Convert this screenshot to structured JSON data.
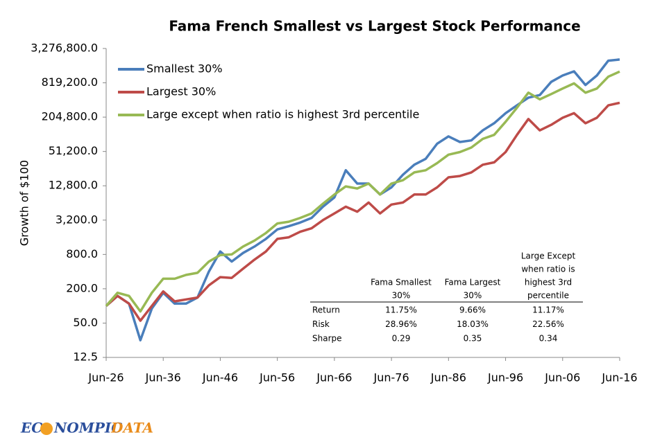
{
  "chart_data": {
    "type": "line",
    "title": "Fama French Smallest vs Largest Stock Performance",
    "y_label": "Growth of $100",
    "log_scale": true,
    "categories": [
      "Jun-26",
      null,
      null,
      null,
      null,
      "Jun-36",
      null,
      null,
      null,
      null,
      "Jun-46",
      null,
      null,
      null,
      null,
      "Jun-56",
      null,
      null,
      null,
      null,
      "Jun-66",
      null,
      null,
      null,
      null,
      "Jun-76",
      null,
      null,
      null,
      null,
      "Jun-86",
      null,
      null,
      null,
      null,
      "Jun-96",
      null,
      null,
      null,
      null,
      "Jun-06",
      null,
      null,
      null,
      null,
      "Jun-16"
    ],
    "series": [
      {
        "name": "Smallest 30%",
        "color": "#4a7ebb",
        "values": [
          100,
          150,
          110,
          25,
          90,
          170,
          110,
          110,
          140,
          400,
          900,
          600,
          850,
          1100,
          1500,
          2200,
          2500,
          2900,
          3500,
          5500,
          8000,
          24000,
          14000,
          14000,
          9000,
          12000,
          20000,
          30000,
          38000,
          70000,
          94000,
          75000,
          80000,
          120000,
          160000,
          240000,
          330000,
          450000,
          500000,
          850000,
          1100000,
          1300000,
          750000,
          1100000,
          2000000,
          2100000
        ]
      },
      {
        "name": "Largest 30%",
        "color": "#be4b48",
        "values": [
          100,
          150,
          110,
          55,
          100,
          180,
          120,
          130,
          140,
          230,
          320,
          310,
          450,
          650,
          900,
          1500,
          1600,
          2000,
          2300,
          3200,
          4200,
          5500,
          4500,
          6500,
          4200,
          6000,
          6500,
          9000,
          9000,
          12000,
          18000,
          19000,
          22000,
          30000,
          33000,
          50000,
          100000,
          190000,
          120000,
          150000,
          200000,
          240000,
          160000,
          200000,
          330000,
          366000
        ]
      },
      {
        "name": "Large except when ratio is highest 3rd percentile",
        "color": "#98b954",
        "values": [
          100,
          170,
          150,
          80,
          170,
          300,
          300,
          350,
          380,
          600,
          780,
          800,
          1100,
          1400,
          1900,
          2800,
          3000,
          3500,
          4200,
          6200,
          9000,
          12500,
          11500,
          14000,
          9000,
          14000,
          16000,
          22000,
          24000,
          32000,
          45000,
          50000,
          60000,
          85000,
          100000,
          170000,
          300000,
          550000,
          420000,
          520000,
          650000,
          800000,
          550000,
          650000,
          1050000,
          1290000
        ]
      }
    ],
    "ylim": [
      12.5,
      3276800
    ],
    "yticks": [
      12.5,
      {
        "value": 50,
        "label": "50.0"
      },
      {
        "value": 200,
        "label": "200.0"
      },
      {
        "value": 800,
        "label": "800.0"
      },
      {
        "value": 3200,
        "label": "3,200.0"
      },
      {
        "value": 12800,
        "label": "12,800.0"
      },
      {
        "value": 51200,
        "label": "51,200.0"
      },
      {
        "value": 204800,
        "label": "204,800.0"
      },
      {
        "value": 819200,
        "label": "819,200.0"
      },
      {
        "value": 3276800,
        "label": "3,276,800.0"
      }
    ],
    "legend": "upper-left",
    "table": {
      "columns": [
        [
          "Fama Smallest",
          "30%"
        ],
        [
          "Fama Largest",
          "30%"
        ],
        [
          "Large Except",
          "when ratio is",
          "highest 3rd",
          "percentile"
        ]
      ],
      "rows": [
        [
          "Return",
          "11.75%",
          "9.66%",
          "11.17%"
        ],
        [
          "Risk",
          "28.96%",
          "18.03%",
          "22.56%"
        ],
        [
          "Sharpe",
          "0.29",
          "0.35",
          "0.34"
        ]
      ]
    }
  },
  "logo": [
    "EC",
    "NOMPIC",
    "DATA"
  ]
}
